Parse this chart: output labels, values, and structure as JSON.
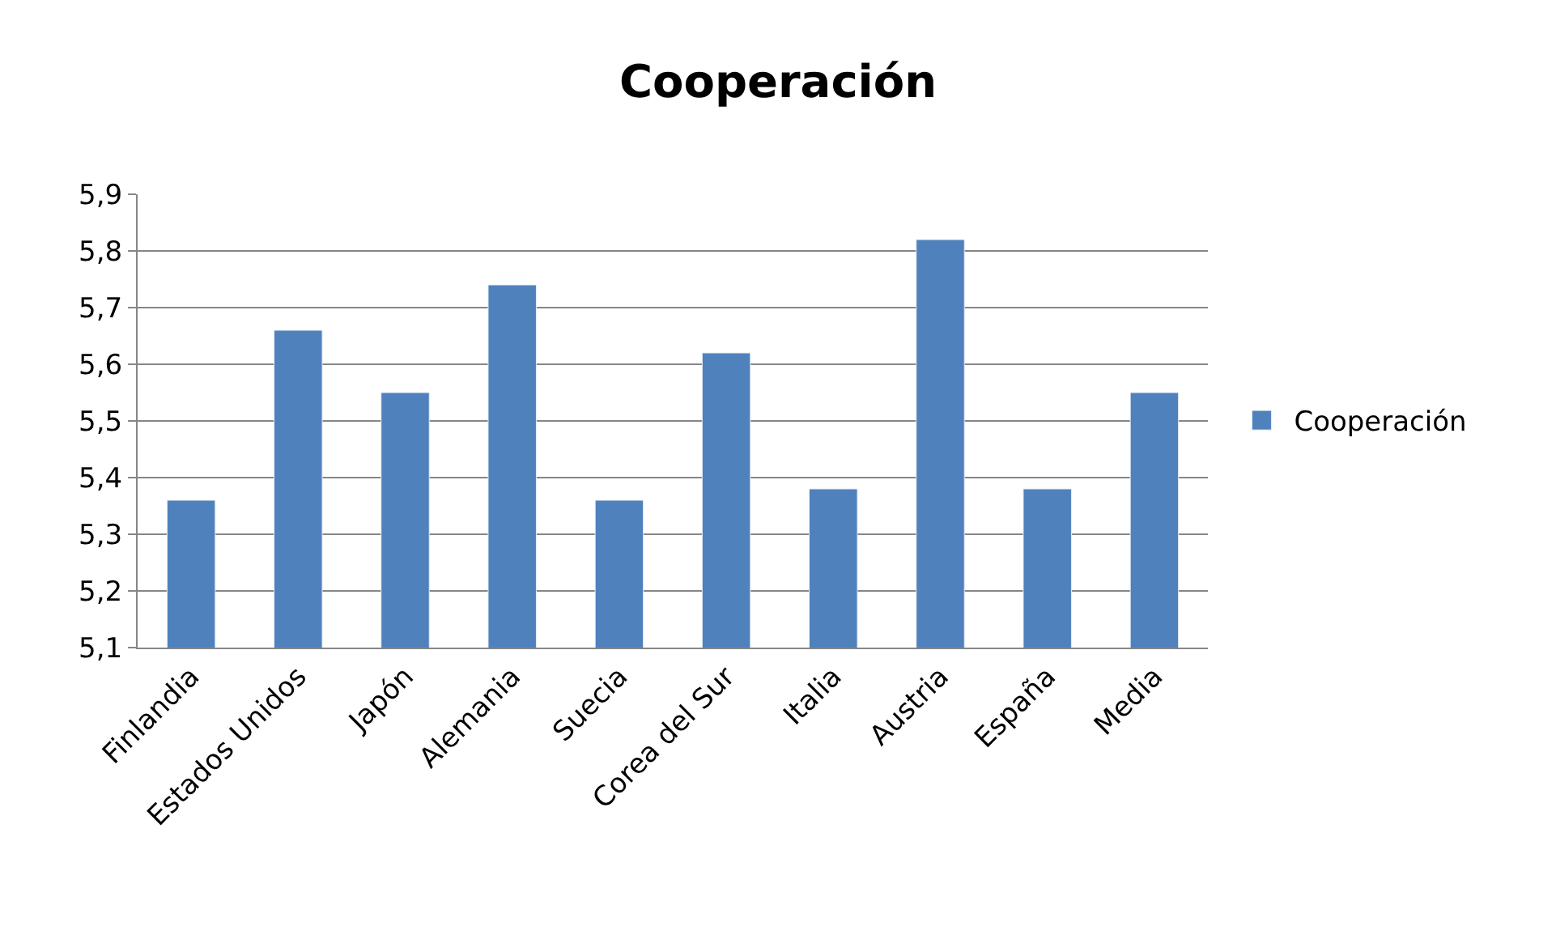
{
  "chart_data": {
    "type": "bar",
    "title": "Cooperación",
    "categories": [
      "Finlandia",
      "Estados Unidos",
      "Japón",
      "Alemania",
      "Suecia",
      "Corea del Sur",
      "Italia",
      "Austria",
      "España",
      "Media"
    ],
    "series": [
      {
        "name": "Cooperación",
        "color": "#4f81bd",
        "values": [
          5.36,
          5.66,
          5.55,
          5.74,
          5.36,
          5.62,
          5.38,
          5.82,
          5.38,
          5.55
        ]
      }
    ],
    "ylim": [
      5.1,
      5.9
    ],
    "yticks": [
      {
        "value": 5.1,
        "label": "5,1"
      },
      {
        "value": 5.2,
        "label": "5,2"
      },
      {
        "value": 5.3,
        "label": "5,3"
      },
      {
        "value": 5.4,
        "label": "5,4"
      },
      {
        "value": 5.5,
        "label": "5,5"
      },
      {
        "value": 5.6,
        "label": "5,6"
      },
      {
        "value": 5.7,
        "label": "5,7"
      },
      {
        "value": 5.8,
        "label": "5,8"
      },
      {
        "value": 5.9,
        "label": "5,9"
      }
    ],
    "grid": "y",
    "legend": "right"
  }
}
